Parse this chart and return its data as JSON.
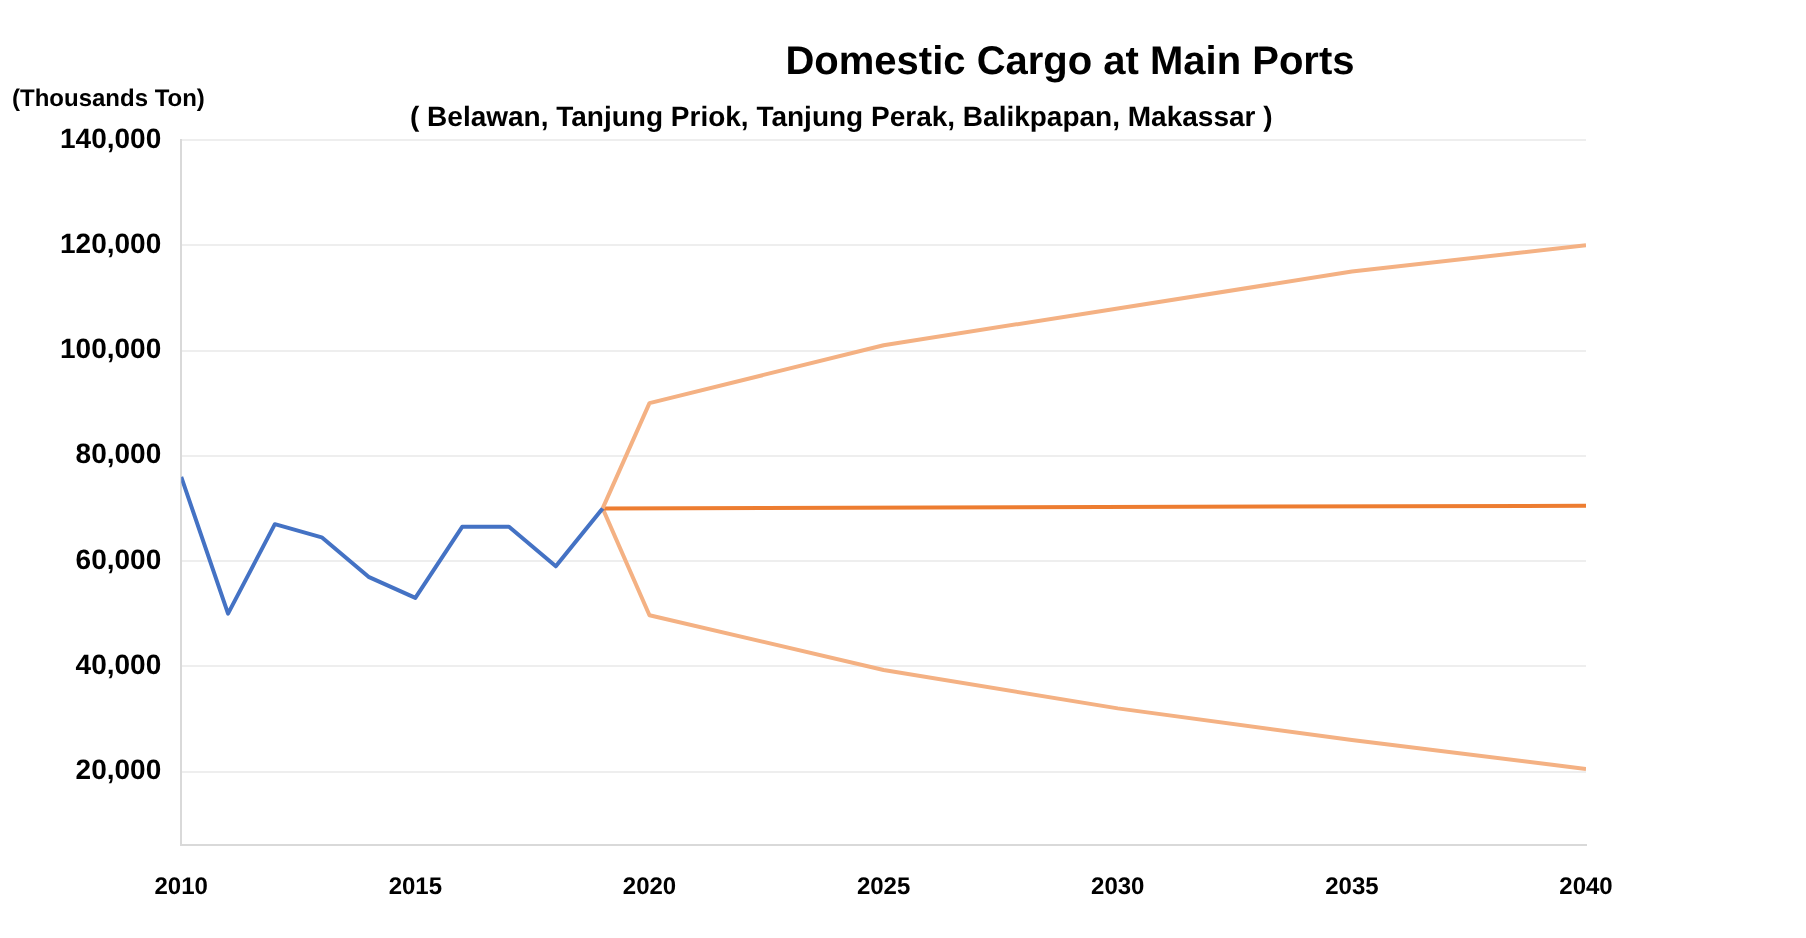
{
  "chart_data": {
    "type": "line",
    "title": "Domestic Cargo at Main Ports",
    "subtitle": "( Belawan, Tanjung Priok, Tanjung Perak, Balikpapan, Makassar )",
    "ylabel": "(Thousands Ton)",
    "series": [
      {
        "color": "#4472c4",
        "x": [
          2010,
          2011,
          2012,
          2013,
          2014,
          2015,
          2016,
          2017,
          2018,
          2019
        ],
        "values": [
          76000,
          50000,
          67000,
          64500,
          57000,
          53000,
          66500,
          66500,
          59000,
          70000
        ]
      },
      {
        "color": "#f4b183",
        "x": [
          2019,
          2020,
          2025,
          2030,
          2035,
          2040
        ],
        "values": [
          70000,
          90000,
          101000,
          108000,
          115000,
          120000
        ]
      },
      {
        "color": "#ed7d31",
        "x": [
          2019,
          2040
        ],
        "values": [
          70000,
          70500
        ]
      },
      {
        "color": "#f4b183",
        "x": [
          2019,
          2020,
          2025,
          2030,
          2035,
          2040
        ],
        "values": [
          70000,
          49700,
          39300,
          32000,
          26000,
          20500
        ]
      }
    ],
    "xlim": [
      2010,
      2040
    ],
    "xticks": [
      2010,
      2015,
      2020,
      2025,
      2030,
      2035,
      2040
    ],
    "ylim": [
      6000,
      140000
    ],
    "yticks": [
      {
        "value": 20000,
        "label": "20,000"
      },
      {
        "value": 40000,
        "label": "40,000"
      },
      {
        "value": 60000,
        "label": "60,000"
      },
      {
        "value": 80000,
        "label": "80,000"
      },
      {
        "value": 100000,
        "label": "100,000"
      },
      {
        "value": 120000,
        "label": "120,000"
      },
      {
        "value": 140000,
        "label": "140,000"
      }
    ],
    "grid": "y",
    "legend": false,
    "marker": "none",
    "line_style": "solid"
  }
}
